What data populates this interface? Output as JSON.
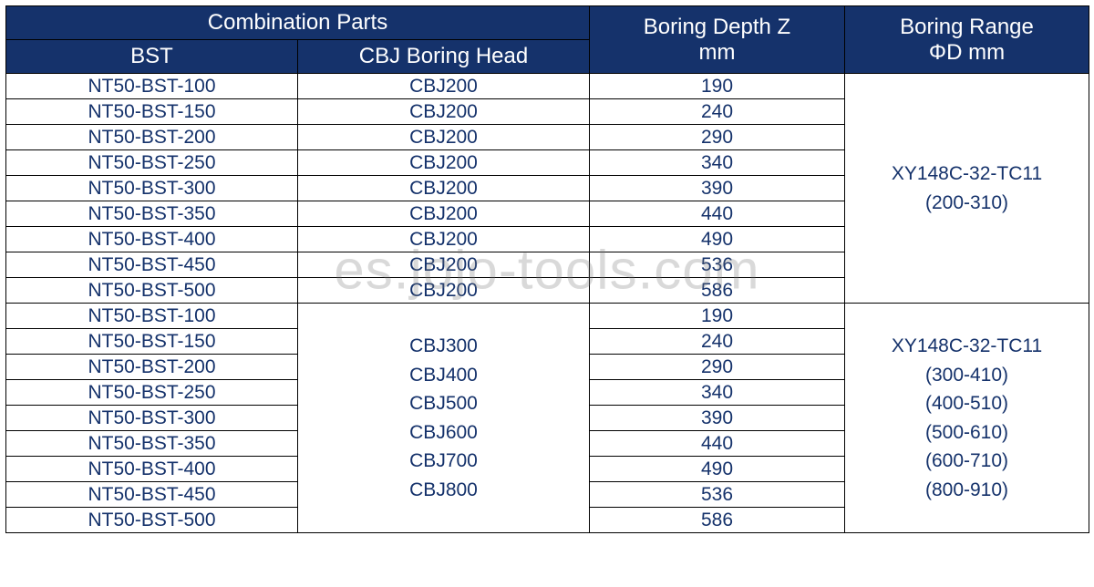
{
  "header": {
    "combination_parts": "Combination Parts",
    "bst": "BST",
    "cbj": "CBJ Boring Head",
    "boring_depth_line1": "Boring Depth Z",
    "boring_depth_line2": "mm",
    "boring_range_line1": "Boring Range",
    "boring_range_line2": "ΦD mm"
  },
  "colors": {
    "header_bg": "#15326b",
    "header_text": "#ffffff",
    "cell_bg": "#ffffff",
    "cell_text": "#15326b",
    "border": "#000000"
  },
  "group1": {
    "bst": [
      "NT50-BST-100",
      "NT50-BST-150",
      "NT50-BST-200",
      "NT50-BST-250",
      "NT50-BST-300",
      "NT50-BST-350",
      "NT50-BST-400",
      "NT50-BST-450",
      "NT50-BST-500"
    ],
    "cbj": [
      "CBJ200",
      "CBJ200",
      "CBJ200",
      "CBJ200",
      "CBJ200",
      "CBJ200",
      "CBJ200",
      "CBJ200",
      "CBJ200"
    ],
    "depth": [
      "190",
      "240",
      "290",
      "340",
      "390",
      "440",
      "490",
      "536",
      "586"
    ],
    "range": [
      "XY148C-32-TC11",
      "(200-310)"
    ]
  },
  "group2": {
    "bst": [
      "NT50-BST-100",
      "NT50-BST-150",
      "NT50-BST-200",
      "NT50-BST-250",
      "NT50-BST-300",
      "NT50-BST-350",
      "NT50-BST-400",
      "NT50-BST-450",
      "NT50-BST-500"
    ],
    "cbj_merged": [
      "CBJ300",
      "CBJ400",
      "CBJ500",
      "CBJ600",
      "CBJ700",
      "CBJ800"
    ],
    "depth": [
      "190",
      "240",
      "290",
      "340",
      "390",
      "440",
      "490",
      "536",
      "586"
    ],
    "range": [
      "XY148C-32-TC11",
      "(300-410)",
      "(400-510)",
      "(500-610)",
      "(600-710)",
      "(800-910)"
    ]
  },
  "watermark": "es.jojo-tools.com"
}
